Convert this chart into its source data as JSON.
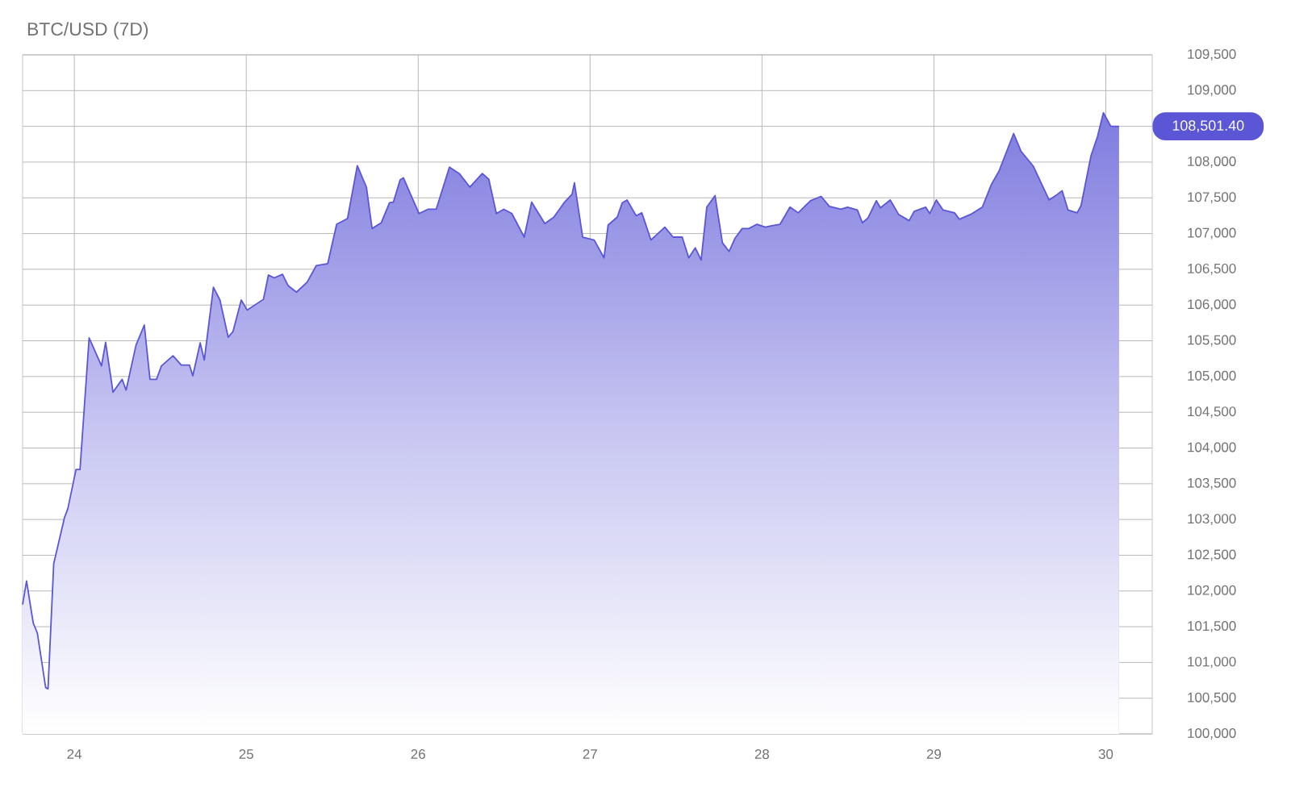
{
  "chart_data": {
    "type": "area",
    "title": "BTC/USD (7D)",
    "x": [
      23.699,
      23.722,
      23.761,
      23.785,
      23.833,
      23.847,
      23.88,
      23.943,
      23.962,
      24.01,
      24.033,
      24.086,
      24.158,
      24.182,
      24.225,
      24.278,
      24.301,
      24.359,
      24.407,
      24.44,
      24.478,
      24.507,
      24.574,
      24.622,
      24.67,
      24.689,
      24.732,
      24.756,
      24.809,
      24.847,
      24.895,
      24.923,
      24.971,
      25.005,
      25.1,
      25.129,
      25.163,
      25.211,
      25.244,
      25.292,
      25.354,
      25.407,
      25.474,
      25.526,
      25.589,
      25.646,
      25.699,
      25.732,
      25.785,
      25.833,
      25.856,
      25.895,
      25.914,
      26.005,
      26.057,
      26.105,
      26.182,
      26.239,
      26.301,
      26.373,
      26.411,
      26.455,
      26.498,
      26.545,
      26.617,
      26.66,
      26.737,
      26.789,
      26.852,
      26.895,
      26.909,
      26.957,
      27.024,
      27.081,
      27.105,
      27.158,
      27.187,
      27.215,
      27.268,
      27.301,
      27.354,
      27.435,
      27.483,
      27.536,
      27.574,
      27.612,
      27.646,
      27.679,
      27.727,
      27.77,
      27.809,
      27.842,
      27.885,
      27.923,
      27.971,
      28.019,
      28.057,
      28.105,
      28.163,
      28.211,
      28.282,
      28.344,
      28.392,
      28.459,
      28.498,
      28.555,
      28.584,
      28.617,
      28.665,
      28.689,
      28.746,
      28.794,
      28.856,
      28.885,
      28.952,
      28.976,
      29.014,
      29.053,
      29.12,
      29.148,
      29.215,
      29.282,
      29.335,
      29.378,
      29.464,
      29.507,
      29.579,
      29.67,
      29.708,
      29.746,
      29.78,
      29.833,
      29.856,
      29.914,
      29.952,
      29.986,
      30.029,
      30.077
    ],
    "series": [
      {
        "color": "#5b56d6",
        "values": [
          101810,
          102140,
          101550,
          101410,
          100650,
          100630,
          102380,
          103030,
          103150,
          103700,
          103700,
          105540,
          105150,
          105480,
          104780,
          104960,
          104810,
          105440,
          105720,
          104960,
          104960,
          105150,
          105290,
          105160,
          105160,
          105010,
          105470,
          105230,
          106250,
          106070,
          105550,
          105630,
          106070,
          105930,
          106080,
          106420,
          106380,
          106430,
          106270,
          106180,
          106320,
          106550,
          106580,
          107130,
          107210,
          107950,
          107650,
          107070,
          107150,
          107430,
          107440,
          107750,
          107780,
          107280,
          107340,
          107340,
          107930,
          107840,
          107650,
          107840,
          107760,
          107280,
          107340,
          107280,
          106950,
          107440,
          107140,
          107230,
          107440,
          107550,
          107710,
          106950,
          106910,
          106660,
          107120,
          107230,
          107430,
          107470,
          107250,
          107290,
          106910,
          107090,
          106950,
          106950,
          106660,
          106800,
          106630,
          107370,
          107530,
          106870,
          106750,
          106930,
          107070,
          107070,
          107130,
          107090,
          107110,
          107130,
          107370,
          107290,
          107460,
          107520,
          107380,
          107340,
          107370,
          107330,
          107150,
          107220,
          107460,
          107360,
          107470,
          107270,
          107180,
          107310,
          107370,
          107280,
          107470,
          107330,
          107290,
          107200,
          107270,
          107370,
          107690,
          107870,
          108400,
          108150,
          107940,
          107470,
          107530,
          107600,
          107330,
          107290,
          107390,
          108090,
          108360,
          108690,
          108500,
          108500
        ]
      }
    ],
    "xlim": [
      23.699,
      30.27
    ],
    "ylim": [
      100000,
      109500
    ],
    "xticks": [
      24,
      25,
      26,
      27,
      28,
      29,
      30
    ],
    "yticks": [
      {
        "value": 100000,
        "label": "100,000"
      },
      {
        "value": 100500,
        "label": "100,500"
      },
      {
        "value": 101000,
        "label": "101,000"
      },
      {
        "value": 101500,
        "label": "101,500"
      },
      {
        "value": 102000,
        "label": "102,000"
      },
      {
        "value": 102500,
        "label": "102,500"
      },
      {
        "value": 103000,
        "label": "103,000"
      },
      {
        "value": 103500,
        "label": "103,500"
      },
      {
        "value": 104000,
        "label": "104,000"
      },
      {
        "value": 104500,
        "label": "104,500"
      },
      {
        "value": 105000,
        "label": "105,000"
      },
      {
        "value": 105500,
        "label": "105,500"
      },
      {
        "value": 106000,
        "label": "106,000"
      },
      {
        "value": 106500,
        "label": "106,500"
      },
      {
        "value": 107000,
        "label": "107,000"
      },
      {
        "value": 107500,
        "label": "107,500"
      },
      {
        "value": 108000,
        "label": "108,000"
      },
      {
        "value": 108500,
        "label": null
      },
      {
        "value": 109000,
        "label": "109,000"
      },
      {
        "value": 109500,
        "label": "109,500"
      }
    ],
    "annotations": [
      "108,501.40"
    ],
    "grid": true
  }
}
